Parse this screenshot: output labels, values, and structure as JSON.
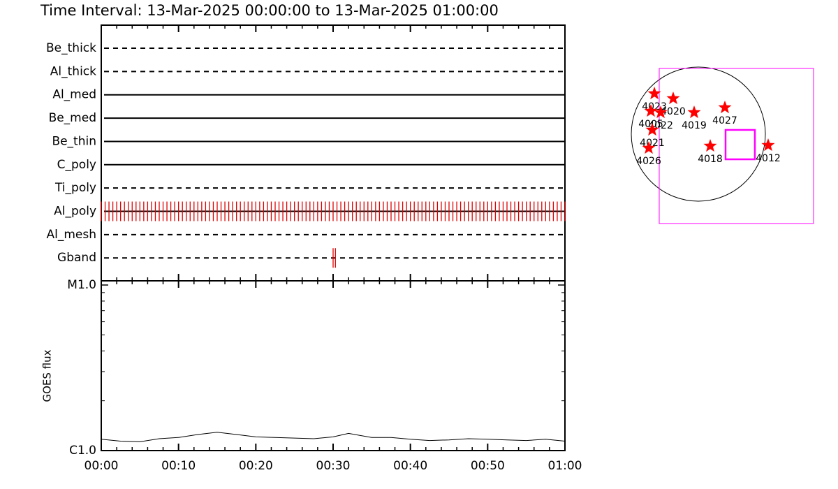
{
  "title": "Time Interval: 13-Mar-2025 00:00:00 to 13-Mar-2025 01:00:00",
  "chart_data": [
    {
      "type": "event",
      "color": "#e00000",
      "xlim": [
        0,
        60
      ],
      "xticks": [
        {
          "value": 0,
          "label": "00:00"
        },
        {
          "value": 10,
          "label": "00:10"
        },
        {
          "value": 20,
          "label": "00:20"
        },
        {
          "value": 30,
          "label": "00:30"
        },
        {
          "value": 40,
          "label": "00:40"
        },
        {
          "value": 50,
          "label": "00:50"
        },
        {
          "value": 60,
          "label": "01:00"
        }
      ],
      "xminor": [
        2,
        4,
        6,
        8,
        12,
        14,
        16,
        18,
        22,
        24,
        26,
        28,
        32,
        34,
        36,
        38,
        42,
        44,
        46,
        48,
        52,
        54,
        56,
        58
      ],
      "series": [
        {
          "name": "Be_thick",
          "style": "dashed",
          "values": []
        },
        {
          "name": "Al_thick",
          "style": "dashed",
          "values": []
        },
        {
          "name": "Al_med",
          "style": "solid",
          "values": []
        },
        {
          "name": "Be_med",
          "style": "solid",
          "values": []
        },
        {
          "name": "Be_thin",
          "style": "solid",
          "values": []
        },
        {
          "name": "C_poly",
          "style": "solid",
          "values": []
        },
        {
          "name": "Ti_poly",
          "style": "dashed",
          "values": []
        },
        {
          "name": "Al_poly",
          "style": "solid",
          "values": [
            0,
            0.5,
            1,
            1.5,
            2,
            2.5,
            3,
            3.5,
            4,
            4.5,
            5,
            5.5,
            6,
            6.5,
            7,
            7.5,
            8,
            8.5,
            9,
            9.5,
            10,
            10.5,
            11,
            11.5,
            12,
            12.5,
            13,
            13.5,
            14,
            14.5,
            15,
            15.5,
            16,
            16.5,
            17,
            17.5,
            18,
            18.5,
            19,
            19.5,
            20,
            20.5,
            21,
            21.5,
            22,
            22.5,
            23,
            23.5,
            24,
            24.5,
            25,
            25.5,
            26,
            26.5,
            27,
            27.5,
            28,
            28.5,
            29,
            29.5,
            30,
            30.5,
            31,
            31.5,
            32,
            32.5,
            33,
            33.5,
            34,
            34.5,
            35,
            35.5,
            36,
            36.5,
            37,
            37.5,
            38,
            38.5,
            39,
            39.5,
            40,
            40.5,
            41,
            41.5,
            42,
            42.5,
            43,
            43.5,
            44,
            44.5,
            45,
            45.5,
            46,
            46.5,
            47,
            47.5,
            48,
            48.5,
            49,
            49.5,
            50,
            50.5,
            51,
            51.5,
            52,
            52.5,
            53,
            53.5,
            54,
            54.5,
            55,
            55.5,
            56,
            56.5,
            57,
            57.5,
            58,
            58.5,
            59,
            59.5,
            60
          ]
        },
        {
          "name": "Al_mesh",
          "style": "dashed",
          "values": []
        },
        {
          "name": "Gband",
          "style": "dashed",
          "values": [
            30.0,
            30.3
          ]
        }
      ]
    },
    {
      "type": "line",
      "ylabel": "GOES flux",
      "log": true,
      "color": "#000000",
      "ylim": [
        1e-06,
        1e-05
      ],
      "yticks": [
        {
          "value": 1e-06,
          "label": "C1.0"
        },
        {
          "value": 1e-05,
          "label": "M1.0"
        }
      ],
      "yminor": [
        2e-06,
        3e-06,
        4e-06,
        5e-06,
        6e-06,
        7e-06,
        8e-06,
        9e-06
      ],
      "x": [
        0,
        2.5,
        5,
        7.5,
        10,
        12.5,
        15,
        17.5,
        20,
        22.5,
        25,
        27.5,
        30,
        32,
        35,
        37.5,
        40,
        42.5,
        45,
        47.5,
        50,
        52.5,
        55,
        57.5,
        60
      ],
      "values": [
        1.17e-06,
        1.14e-06,
        1.13e-06,
        1.18e-06,
        1.2e-06,
        1.25e-06,
        1.29e-06,
        1.25e-06,
        1.21e-06,
        1.2e-06,
        1.19e-06,
        1.18e-06,
        1.21e-06,
        1.27e-06,
        1.2e-06,
        1.2e-06,
        1.17e-06,
        1.15e-06,
        1.16e-06,
        1.18e-06,
        1.17e-06,
        1.16e-06,
        1.15e-06,
        1.17e-06,
        1.14e-06
      ]
    },
    {
      "type": "scatter",
      "color": "#ff0000",
      "disk_radius": 970,
      "points": [
        {
          "label": "4023",
          "x": -636,
          "y": 586
        },
        {
          "label": "4020",
          "x": -364,
          "y": 515
        },
        {
          "label": "4005",
          "x": -687,
          "y": 333
        },
        {
          "label": "4022",
          "x": -545,
          "y": 313
        },
        {
          "label": "4019",
          "x": -61,
          "y": 313
        },
        {
          "label": "4027",
          "x": 384,
          "y": 384
        },
        {
          "label": "4021",
          "x": -667,
          "y": 61
        },
        {
          "label": "4026",
          "x": -717,
          "y": -202
        },
        {
          "label": "4018",
          "x": 172,
          "y": -172
        },
        {
          "label": "4012",
          "x": 1010,
          "y": -162
        }
      ],
      "box_color": "#ff00ff",
      "boxes": [
        {
          "x": [
            -566,
            1667
          ],
          "y": [
            -1293,
            950
          ]
        },
        {
          "x": [
            394,
            818
          ],
          "y": [
            -364,
            61
          ]
        }
      ]
    }
  ]
}
